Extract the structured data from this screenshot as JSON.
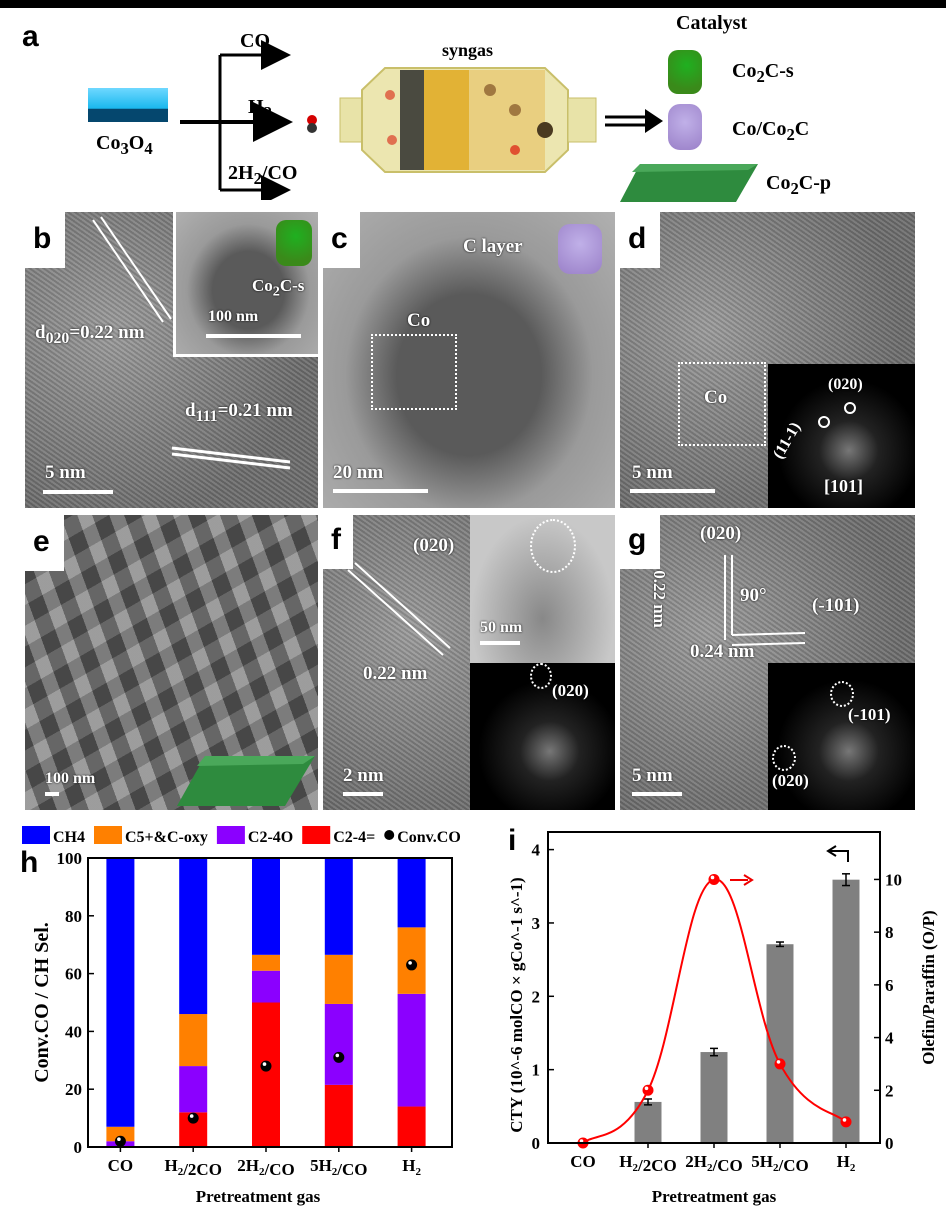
{
  "panel_a": {
    "label": "a",
    "precursor": "Co3O4",
    "branches": [
      "CO",
      "H2",
      "2H2/CO"
    ],
    "reactor_label": "syngas",
    "catalyst_title": "Catalyst",
    "catalysts": [
      "Co2C-s",
      "Co/Co2C",
      "Co2C-p"
    ],
    "colors": {
      "precursor": "#1ab8ee",
      "co2c_s": "#3a9a1e",
      "co_co2c": "#a68fd0",
      "co2c_p": "#2e8b3e",
      "reactor": "#e6dc9a"
    }
  },
  "panel_b": {
    "label": "b",
    "d020": "d020=0.22 nm",
    "d111": "d111=0.21 nm",
    "scale": "5 nm",
    "inset_label": "Co2C-s",
    "inset_scale": "100 nm"
  },
  "panel_c": {
    "label": "c",
    "c_layer": "C layer",
    "co": "Co",
    "scale": "20 nm"
  },
  "panel_d": {
    "label": "d",
    "co": "Co",
    "scale": "5 nm",
    "fft_spot1": "(020)",
    "fft_spot2": "(11-1)",
    "zone_axis": "[101]"
  },
  "panel_e": {
    "label": "e",
    "scale": "100 nm"
  },
  "panel_f": {
    "label": "f",
    "plane": "(020)",
    "spacing": "0.22 nm",
    "scale": "2 nm",
    "inset_scale": "50 nm",
    "saed_spot": "(020)"
  },
  "panel_g": {
    "label": "g",
    "plane1": "(020)",
    "spacing1": "0.22 nm",
    "angle": "90°",
    "plane2": "(-101)",
    "spacing2": "0.24 nm",
    "scale": "5 nm",
    "saed_spot1": "(-101)",
    "saed_spot2": "(020)"
  },
  "chart_data": [
    {
      "label": "h",
      "type": "bar",
      "stacked": true,
      "categories": [
        "CO",
        "H2/2CO",
        "2H2/CO",
        "5H2/CO",
        "H2"
      ],
      "xlabel": "Pretreatment gas",
      "ylabel": "Conv.CO / CH Sel.",
      "ylim": [
        0,
        100
      ],
      "yticks": [
        0,
        20,
        40,
        60,
        80,
        100
      ],
      "legend_position": "top",
      "series": [
        {
          "name": "C2-4=",
          "color": "#ff0000",
          "values": [
            0,
            12,
            50,
            21.5,
            14
          ]
        },
        {
          "name": "C2-4O",
          "color": "#8b00ff",
          "values": [
            2,
            16,
            11,
            28,
            39
          ]
        },
        {
          "name": "C5+&C-oxy",
          "color": "#ff8000",
          "values": [
            5,
            18,
            5.5,
            17,
            23
          ]
        },
        {
          "name": "CH4",
          "color": "#0000ff",
          "values": [
            93,
            54,
            33.5,
            33.5,
            24
          ]
        }
      ],
      "scatter": {
        "name": "Conv.CO",
        "color": "#000000",
        "values": [
          2,
          10,
          28,
          31,
          63
        ]
      }
    },
    {
      "label": "i",
      "type": "bar",
      "categories": [
        "CO",
        "H2/2CO",
        "2H2/CO",
        "5H2/CO",
        "H2"
      ],
      "xlabel": "Pretreatment gas",
      "ylabel": "CTY (10^-6 molCO × gCo^-1 s^-1)",
      "y2label": "Olefin/Paraffin (O/P)",
      "ylim": [
        0,
        4.24
      ],
      "y2lim": [
        0,
        11.8
      ],
      "yticks": [
        0,
        1,
        2,
        3,
        4
      ],
      "y2ticks": [
        0,
        2,
        4,
        6,
        8,
        10
      ],
      "bars": {
        "color": "#808080",
        "values": [
          0,
          0.56,
          1.24,
          2.71,
          3.59
        ],
        "errors": [
          0,
          0.04,
          0.05,
          0.03,
          0.08
        ],
        "axis": "left"
      },
      "line": {
        "color": "#ff0000",
        "values": [
          0,
          2,
          10,
          3,
          0.8
        ],
        "axis": "right"
      }
    }
  ]
}
